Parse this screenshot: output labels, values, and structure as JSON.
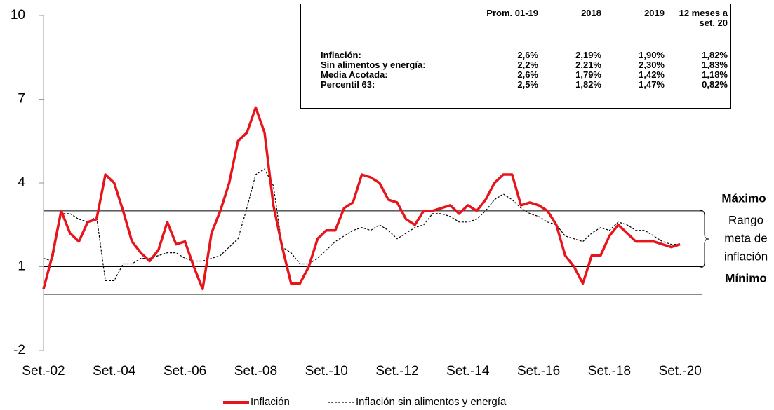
{
  "chart_data": {
    "type": "line",
    "categories": [
      "Set.-02",
      null,
      null,
      null,
      null,
      null,
      null,
      null,
      "Set.-04",
      null,
      null,
      null,
      null,
      null,
      null,
      null,
      "Set.-06",
      null,
      null,
      null,
      null,
      null,
      null,
      null,
      "Set.-08",
      null,
      null,
      null,
      null,
      null,
      null,
      null,
      "Set.-10",
      null,
      null,
      null,
      null,
      null,
      null,
      null,
      "Set.-12",
      null,
      null,
      null,
      null,
      null,
      null,
      null,
      "Set.-14",
      null,
      null,
      null,
      null,
      null,
      null,
      null,
      "Set.-16",
      null,
      null,
      null,
      null,
      null,
      null,
      null,
      "Set.-18",
      null,
      null,
      null,
      null,
      null,
      null,
      null,
      "Set.-20"
    ],
    "series": [
      {
        "name": "Inflación",
        "color": "#e8141b",
        "style": "solid",
        "values": [
          0.2,
          1.4,
          3.0,
          2.2,
          1.9,
          2.6,
          2.7,
          4.3,
          4.0,
          3.0,
          1.9,
          1.5,
          1.2,
          1.6,
          2.6,
          1.8,
          1.9,
          1.0,
          0.2,
          2.2,
          3.0,
          4.0,
          5.5,
          5.8,
          6.7,
          5.8,
          3.2,
          1.7,
          0.4,
          0.4,
          1.0,
          2.0,
          2.3,
          2.3,
          3.1,
          3.3,
          4.3,
          4.2,
          4.0,
          3.4,
          3.3,
          2.7,
          2.5,
          3.0,
          3.0,
          3.1,
          3.2,
          2.9,
          3.2,
          3.0,
          3.4,
          4.0,
          4.3,
          4.3,
          3.2,
          3.3,
          3.2,
          3.0,
          2.5,
          1.4,
          1.0,
          0.4,
          1.4,
          1.4,
          2.1,
          2.5,
          2.2,
          1.9,
          1.9,
          1.9,
          1.8,
          1.7,
          1.8
        ]
      },
      {
        "name": "Inflación sin alimentos y energía",
        "color": "#000000",
        "style": "dashed",
        "values": [
          1.3,
          1.2,
          2.9,
          2.9,
          2.7,
          2.6,
          2.8,
          0.5,
          0.5,
          1.1,
          1.1,
          1.3,
          1.3,
          1.4,
          1.5,
          1.5,
          1.3,
          1.2,
          1.2,
          1.3,
          1.4,
          1.7,
          2.0,
          3.1,
          4.3,
          4.5,
          3.9,
          1.7,
          1.5,
          1.1,
          1.1,
          1.3,
          1.6,
          1.9,
          2.1,
          2.3,
          2.4,
          2.3,
          2.5,
          2.3,
          2.0,
          2.2,
          2.4,
          2.5,
          2.9,
          2.9,
          2.8,
          2.6,
          2.6,
          2.7,
          3.0,
          3.4,
          3.6,
          3.4,
          3.1,
          2.9,
          2.8,
          2.6,
          2.5,
          2.1,
          2.0,
          1.9,
          2.2,
          2.4,
          2.3,
          2.6,
          2.5,
          2.3,
          2.3,
          2.1,
          1.9,
          1.8,
          1.8
        ]
      }
    ],
    "ylim": [
      -2,
      10
    ],
    "yticks": [
      -2,
      1,
      4,
      7,
      10
    ],
    "reference_lines": [
      3,
      1,
      0
    ],
    "annotations": {
      "max": "Máximo",
      "range": [
        "Rango",
        "meta de",
        "inflación"
      ],
      "min": "Mínimo"
    },
    "table": {
      "columns": [
        "Prom. 01-19",
        "2018",
        "2019",
        "12 meses a set. 20"
      ],
      "rows": [
        [
          "Inflación:",
          "2,6%",
          "2,19%",
          "1,90%",
          "1,82%"
        ],
        [
          "Sin alimentos y energía:",
          "2,2%",
          "2,21%",
          "2,30%",
          "1,83%"
        ],
        [
          "Media Acotada:",
          "2,6%",
          "1,79%",
          "1,42%",
          "1,18%"
        ],
        [
          "Percentil 63:",
          "2,5%",
          "1,82%",
          "1,47%",
          "0,82%"
        ]
      ]
    }
  }
}
